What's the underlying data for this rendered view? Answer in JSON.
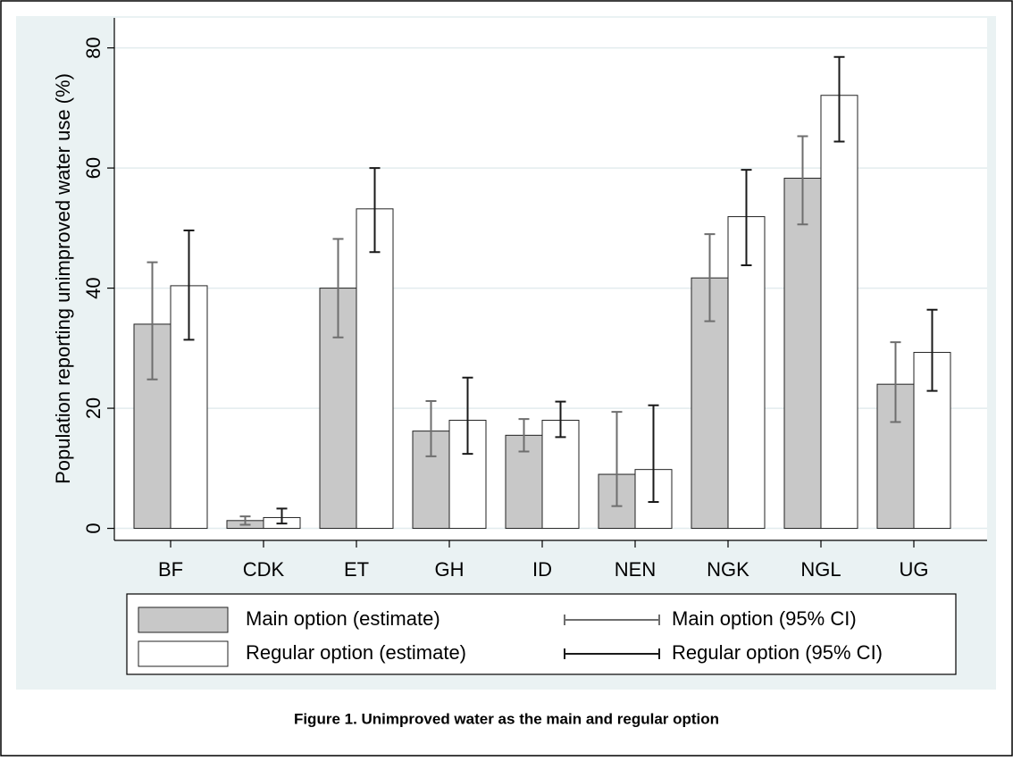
{
  "chart_data": {
    "type": "bar",
    "caption": "Figure 1. Unimproved water as the main and regular option",
    "y_label": "Population reporting unimproved water use (%)",
    "categories": [
      "BF",
      "CDK",
      "ET",
      "GH",
      "ID",
      "NEN",
      "NGK",
      "NGL",
      "UG"
    ],
    "series": [
      {
        "name": "Main option (estimate)",
        "color": "#c8c8c8",
        "ci_name": "Main option (95% CI)",
        "ci_color": "#6e6e6e",
        "values": [
          34,
          1.3,
          40,
          16.2,
          15.5,
          9,
          41.7,
          58.3,
          24
        ],
        "lower": [
          24.8,
          0.6,
          31.8,
          12,
          12.8,
          3.7,
          34.5,
          50.6,
          17.7
        ],
        "upper": [
          44.3,
          2,
          48.2,
          21.2,
          18.2,
          19.4,
          49,
          65.3,
          31
        ]
      },
      {
        "name": "Regular option (estimate)",
        "color": "#ffffff",
        "ci_name": "Regular option (95% CI)",
        "ci_color": "#1a1a1a",
        "values": [
          40.4,
          1.8,
          53.2,
          18,
          18,
          9.8,
          51.9,
          72.1,
          29.3
        ],
        "lower": [
          31.4,
          0.8,
          46,
          12.4,
          15.2,
          4.4,
          43.8,
          64.4,
          22.9
        ],
        "upper": [
          49.6,
          3.3,
          60,
          25.1,
          21.1,
          20.5,
          59.7,
          78.5,
          36.4
        ]
      }
    ],
    "ylim": [
      -2,
      85
    ],
    "yticks": [
      0,
      20,
      40,
      60,
      80
    ],
    "grid": true,
    "legend": "bottom"
  }
}
